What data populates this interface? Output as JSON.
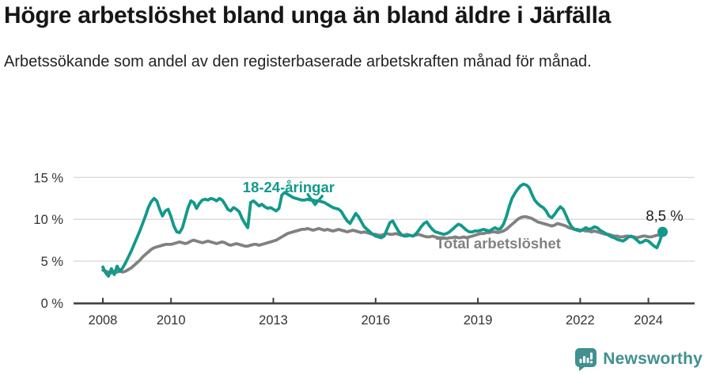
{
  "header": {
    "title": "Högre arbetslöshet bland unga än bland äldre i Järfälla",
    "subtitle": "Arbetssökande som andel av den registerbaserade arbetskraften månad för månad."
  },
  "chart_data": {
    "type": "line",
    "title": "Högre arbetslöshet bland unga än bland äldre i Järfälla",
    "subtitle": "Arbetssökande som andel av den registerbaserade arbetskraften månad för månad.",
    "frequency": "monthly",
    "x_start": {
      "year": 2008,
      "month": 1
    },
    "x_ticks": [
      2008,
      2010,
      2013,
      2016,
      2019,
      2022,
      2024
    ],
    "y_ticks": [
      {
        "value": 0,
        "label": "0 %"
      },
      {
        "value": 5,
        "label": "5 %"
      },
      {
        "value": 10,
        "label": "10 %"
      },
      {
        "value": 15,
        "label": "15 %"
      }
    ],
    "ylim": [
      0,
      15.5
    ],
    "xlim": [
      2007.1,
      2025.4
    ],
    "grid": "horizontal",
    "gridline_color": "#dadada",
    "axis_color": "#3b3b3b",
    "series": [
      {
        "name": "18-24-åringar",
        "color": "#12998b",
        "label": {
          "x": 2013.45,
          "y": 13.25
        },
        "end_dot": true,
        "values": [
          4.3,
          3.6,
          3.2,
          4.1,
          3.4,
          4.4,
          3.8,
          4.2,
          4.8,
          5.5,
          6.2,
          7.0,
          7.8,
          8.6,
          9.5,
          10.4,
          11.4,
          12.1,
          12.5,
          12.2,
          11.2,
          10.4,
          11.0,
          11.2,
          10.3,
          9.2,
          8.5,
          8.4,
          9.0,
          10.2,
          11.4,
          12.2,
          12.0,
          11.3,
          11.9,
          12.3,
          12.4,
          12.3,
          12.5,
          12.4,
          12.2,
          12.5,
          12.3,
          11.8,
          11.2,
          11.0,
          11.4,
          11.2,
          10.9,
          10.1,
          9.5,
          9.0,
          12.0,
          12.2,
          11.9,
          11.6,
          11.8,
          11.5,
          11.3,
          11.4,
          11.2,
          11.0,
          11.3,
          12.9,
          13.2,
          13.0,
          12.8,
          12.6,
          12.5,
          12.4,
          12.3,
          12.3,
          12.4,
          12.3,
          12.3,
          12.2,
          12.2,
          12.1,
          12.0,
          11.8,
          11.6,
          11.4,
          11.3,
          11.2,
          10.9,
          10.3,
          9.8,
          9.5,
          10.1,
          10.7,
          10.3,
          9.7,
          9.1,
          8.8,
          8.5,
          8.2,
          8.0,
          7.9,
          7.8,
          8.0,
          8.8,
          9.6,
          9.8,
          9.2,
          8.6,
          8.2,
          8.0,
          8.0,
          8.1,
          8.0,
          8.2,
          8.6,
          9.1,
          9.5,
          9.7,
          9.2,
          8.8,
          8.5,
          8.4,
          8.3,
          8.2,
          8.3,
          8.5,
          8.8,
          9.1,
          9.4,
          9.3,
          9.0,
          8.7,
          8.5,
          8.5,
          8.6,
          8.6,
          8.7,
          8.8,
          8.7,
          8.6,
          8.8,
          9.0,
          8.8,
          8.9,
          9.4,
          10.3,
          11.5,
          12.5,
          13.1,
          13.6,
          14.0,
          14.2,
          14.1,
          13.8,
          13.0,
          12.3,
          11.9,
          11.6,
          11.4,
          11.0,
          10.4,
          10.2,
          10.6,
          11.1,
          11.5,
          11.2,
          10.5,
          9.7,
          9.1,
          8.8,
          8.7,
          8.6,
          8.8,
          9.0,
          8.8,
          8.9,
          9.1,
          9.0,
          8.7,
          8.5,
          8.3,
          8.1,
          7.9,
          7.8,
          7.6,
          7.5,
          7.4,
          7.6,
          7.9,
          8.0,
          7.8,
          7.5,
          7.2,
          7.3,
          7.5,
          7.4,
          7.1,
          6.8,
          6.6,
          7.4,
          8.5
        ]
      },
      {
        "name": "Total arbetslöshet",
        "color": "#818181",
        "label": {
          "x": 2019.6,
          "y": 6.5
        },
        "end_dot": false,
        "values": [
          3.9,
          3.8,
          3.7,
          3.6,
          3.6,
          3.7,
          3.8,
          3.7,
          3.8,
          4.0,
          4.2,
          4.5,
          4.8,
          5.1,
          5.5,
          5.8,
          6.1,
          6.4,
          6.6,
          6.7,
          6.8,
          6.9,
          7.0,
          7.0,
          7.0,
          7.1,
          7.2,
          7.3,
          7.2,
          7.1,
          7.2,
          7.4,
          7.5,
          7.4,
          7.3,
          7.2,
          7.3,
          7.4,
          7.3,
          7.2,
          7.1,
          7.2,
          7.3,
          7.2,
          7.0,
          6.9,
          7.0,
          7.1,
          7.0,
          6.9,
          6.8,
          6.8,
          6.9,
          7.0,
          7.0,
          6.9,
          7.0,
          7.1,
          7.2,
          7.3,
          7.4,
          7.5,
          7.7,
          7.9,
          8.1,
          8.3,
          8.4,
          8.5,
          8.6,
          8.7,
          8.8,
          8.8,
          8.9,
          8.8,
          8.7,
          8.8,
          8.9,
          8.8,
          8.7,
          8.8,
          8.7,
          8.6,
          8.7,
          8.8,
          8.7,
          8.6,
          8.5,
          8.6,
          8.7,
          8.6,
          8.5,
          8.4,
          8.5,
          8.4,
          8.3,
          8.2,
          8.2,
          8.1,
          8.1,
          8.2,
          8.3,
          8.2,
          8.2,
          8.3,
          8.2,
          8.1,
          8.1,
          8.2,
          8.1,
          8.0,
          8.1,
          8.2,
          8.1,
          8.0,
          7.9,
          7.9,
          8.0,
          7.9,
          7.8,
          7.8,
          7.8,
          7.7,
          7.8,
          7.8,
          7.9,
          7.8,
          7.8,
          7.9,
          7.8,
          7.9,
          8.0,
          8.1,
          8.2,
          8.3,
          8.3,
          8.4,
          8.4,
          8.5,
          8.5,
          8.4,
          8.5,
          8.6,
          8.8,
          9.1,
          9.4,
          9.7,
          10.0,
          10.2,
          10.3,
          10.3,
          10.2,
          10.1,
          9.9,
          9.7,
          9.6,
          9.5,
          9.4,
          9.3,
          9.2,
          9.3,
          9.5,
          9.4,
          9.3,
          9.2,
          9.0,
          8.9,
          8.8,
          8.8,
          8.7,
          8.7,
          8.6,
          8.6,
          8.5,
          8.6,
          8.5,
          8.4,
          8.3,
          8.2,
          8.2,
          8.1,
          8.0,
          8.0,
          7.9,
          7.9,
          8.0,
          8.0,
          7.9,
          7.9,
          7.8,
          7.9,
          8.0,
          8.0,
          7.9,
          7.9,
          8.0,
          8.1,
          8.1,
          8.1
        ]
      }
    ],
    "annotations": {
      "end_value": {
        "text": "8,5 %",
        "x": 2024.42,
        "y": 8.5
      },
      "arrow": {
        "x": 2014.2,
        "y": 12.4,
        "series": "18-24-åringar"
      }
    }
  },
  "footer": {
    "brand": "Newsworthy",
    "brand_color": "#40918f",
    "logo_icon": "speech-bubble-bar-chart-icon"
  }
}
